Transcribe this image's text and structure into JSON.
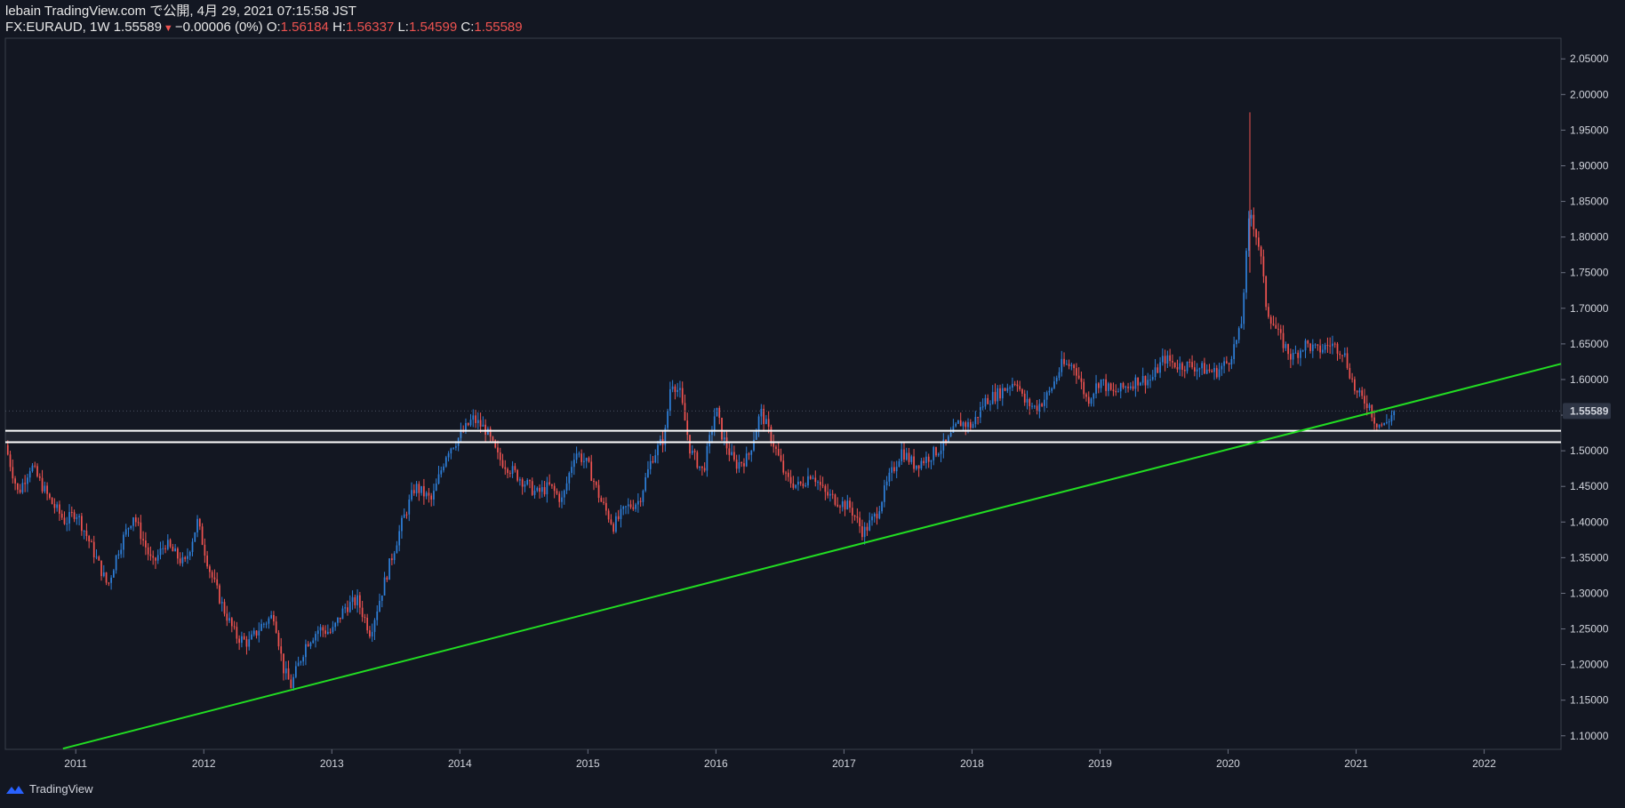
{
  "header": {
    "line1": "lebain TradingView.com で公開, 4月 29, 2021 07:15:58 JST",
    "symbol": "FX:EURAUD, 1W",
    "last": "1.55589",
    "change": "−0.00006 (0%)",
    "o_label": "O:",
    "o_value": "1.56184",
    "h_label": "H:",
    "h_value": "1.56337",
    "l_label": "L:",
    "l_value": "1.54599",
    "c_label": "C:",
    "c_value": "1.55589"
  },
  "footer": {
    "brand": "TradingView",
    "icon": "tradingview-logo-icon"
  },
  "colors": {
    "bg": "#131722",
    "up": "#2e7fd9",
    "down": "#ef5350",
    "trend": "#22dd22",
    "hline": "#ffffff",
    "price_tag": "#2e3545"
  },
  "chart_data": {
    "type": "candlestick",
    "symbol": "FX:EURAUD",
    "interval": "1W",
    "title": "FX:EURAUD, 1W",
    "y_ticks": [
      "2.05000",
      "2.00000",
      "1.95000",
      "1.90000",
      "1.85000",
      "1.80000",
      "1.75000",
      "1.70000",
      "1.65000",
      "1.60000",
      "1.55000",
      "1.50000",
      "1.45000",
      "1.40000",
      "1.35000",
      "1.30000",
      "1.25000",
      "1.20000",
      "1.15000",
      "1.10000"
    ],
    "x_ticks": [
      "2011",
      "2012",
      "2013",
      "2014",
      "2015",
      "2016",
      "2017",
      "2018",
      "2019",
      "2020",
      "2021",
      "2022"
    ],
    "xlim": [
      2010.45,
      2022.6
    ],
    "ylim": [
      1.081,
      2.079
    ],
    "last_price": "1.55589",
    "close_path": [
      [
        2010.45,
        1.508
      ],
      [
        2010.55,
        1.44
      ],
      [
        2010.65,
        1.48
      ],
      [
        2010.8,
        1.43
      ],
      [
        2010.92,
        1.4
      ],
      [
        2011.0,
        1.415
      ],
      [
        2011.1,
        1.375
      ],
      [
        2011.25,
        1.31
      ],
      [
        2011.33,
        1.36
      ],
      [
        2011.45,
        1.41
      ],
      [
        2011.6,
        1.34
      ],
      [
        2011.7,
        1.37
      ],
      [
        2011.85,
        1.34
      ],
      [
        2011.95,
        1.4
      ],
      [
        2012.05,
        1.33
      ],
      [
        2012.15,
        1.28
      ],
      [
        2012.25,
        1.24
      ],
      [
        2012.35,
        1.23
      ],
      [
        2012.45,
        1.255
      ],
      [
        2012.55,
        1.27
      ],
      [
        2012.62,
        1.195
      ],
      [
        2012.68,
        1.17
      ],
      [
        2012.8,
        1.23
      ],
      [
        2012.9,
        1.25
      ],
      [
        2013.0,
        1.245
      ],
      [
        2013.1,
        1.28
      ],
      [
        2013.2,
        1.29
      ],
      [
        2013.3,
        1.245
      ],
      [
        2013.45,
        1.34
      ],
      [
        2013.55,
        1.4
      ],
      [
        2013.65,
        1.45
      ],
      [
        2013.78,
        1.43
      ],
      [
        2013.9,
        1.5
      ],
      [
        2014.0,
        1.52
      ],
      [
        2014.1,
        1.545
      ],
      [
        2014.2,
        1.53
      ],
      [
        2014.3,
        1.49
      ],
      [
        2014.45,
        1.465
      ],
      [
        2014.6,
        1.44
      ],
      [
        2014.7,
        1.45
      ],
      [
        2014.8,
        1.43
      ],
      [
        2014.9,
        1.5
      ],
      [
        2015.0,
        1.48
      ],
      [
        2015.1,
        1.43
      ],
      [
        2015.2,
        1.395
      ],
      [
        2015.3,
        1.42
      ],
      [
        2015.4,
        1.43
      ],
      [
        2015.5,
        1.49
      ],
      [
        2015.6,
        1.52
      ],
      [
        2015.65,
        1.6
      ],
      [
        2015.72,
        1.58
      ],
      [
        2015.8,
        1.5
      ],
      [
        2015.9,
        1.47
      ],
      [
        2016.0,
        1.56
      ],
      [
        2016.05,
        1.52
      ],
      [
        2016.15,
        1.48
      ],
      [
        2016.25,
        1.49
      ],
      [
        2016.35,
        1.555
      ],
      [
        2016.45,
        1.51
      ],
      [
        2016.55,
        1.46
      ],
      [
        2016.65,
        1.45
      ],
      [
        2016.75,
        1.47
      ],
      [
        2016.85,
        1.44
      ],
      [
        2016.95,
        1.43
      ],
      [
        2017.05,
        1.42
      ],
      [
        2017.15,
        1.385
      ],
      [
        2017.25,
        1.41
      ],
      [
        2017.35,
        1.46
      ],
      [
        2017.45,
        1.5
      ],
      [
        2017.55,
        1.48
      ],
      [
        2017.65,
        1.49
      ],
      [
        2017.8,
        1.51
      ],
      [
        2017.9,
        1.54
      ],
      [
        2018.0,
        1.535
      ],
      [
        2018.1,
        1.57
      ],
      [
        2018.2,
        1.58
      ],
      [
        2018.35,
        1.6
      ],
      [
        2018.4,
        1.57
      ],
      [
        2018.5,
        1.56
      ],
      [
        2018.6,
        1.58
      ],
      [
        2018.7,
        1.62
      ],
      [
        2018.8,
        1.62
      ],
      [
        2018.9,
        1.57
      ],
      [
        2019.0,
        1.6
      ],
      [
        2019.1,
        1.58
      ],
      [
        2019.2,
        1.59
      ],
      [
        2019.3,
        1.6
      ],
      [
        2019.4,
        1.6
      ],
      [
        2019.5,
        1.63
      ],
      [
        2019.6,
        1.62
      ],
      [
        2019.7,
        1.62
      ],
      [
        2019.8,
        1.615
      ],
      [
        2019.9,
        1.61
      ],
      [
        2020.0,
        1.625
      ],
      [
        2020.1,
        1.67
      ],
      [
        2020.17,
        1.84
      ],
      [
        2020.25,
        1.78
      ],
      [
        2020.3,
        1.7
      ],
      [
        2020.4,
        1.66
      ],
      [
        2020.5,
        1.63
      ],
      [
        2020.6,
        1.65
      ],
      [
        2020.7,
        1.64
      ],
      [
        2020.8,
        1.65
      ],
      [
        2020.9,
        1.64
      ],
      [
        2021.0,
        1.58
      ],
      [
        2021.1,
        1.565
      ],
      [
        2021.15,
        1.54
      ],
      [
        2021.22,
        1.535
      ],
      [
        2021.3,
        1.556
      ]
    ],
    "horizontal_levels": [
      1.528,
      1.512
    ],
    "trendline": {
      "from": [
        2010.9,
        1.082
      ],
      "to": [
        2022.6,
        1.622
      ]
    }
  }
}
